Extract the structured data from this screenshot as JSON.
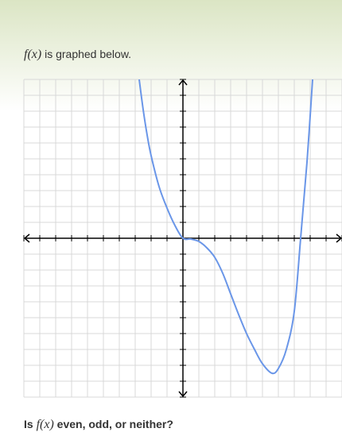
{
  "prompt": {
    "math": "f(x)",
    "text": " is graphed below."
  },
  "question": {
    "before": "Is ",
    "math": "f(x)",
    "after": " even, odd, or neither?"
  },
  "chart_data": {
    "type": "line",
    "xlim": [
      -10,
      10
    ],
    "ylim": [
      -10,
      10
    ],
    "xticks": [
      -10,
      -9,
      -8,
      -7,
      -6,
      -5,
      -4,
      -3,
      -2,
      -1,
      0,
      1,
      2,
      3,
      4,
      5,
      6,
      7,
      8,
      9,
      10
    ],
    "yticks": [
      -10,
      -9,
      -8,
      -7,
      -6,
      -5,
      -4,
      -3,
      -2,
      -1,
      0,
      1,
      2,
      3,
      4,
      5,
      6,
      7,
      8,
      9,
      10
    ],
    "grid": true,
    "x": [
      -2.75,
      -2.5,
      -2.25,
      -2,
      -1.5,
      -1,
      -0.5,
      0,
      0.5,
      1,
      1.5,
      2,
      2.5,
      3,
      3.5,
      4,
      4.5,
      5,
      5.6,
      6,
      6.5,
      7,
      7.4,
      7.8,
      8.15
    ],
    "series": [
      {
        "color": "#6a96e8",
        "values": [
          10,
          8.1,
          6.5,
          5.2,
          3.25,
          1.9,
          0.8,
          0,
          -0.05,
          -0.2,
          -0.6,
          -1.2,
          -2.2,
          -3.5,
          -4.8,
          -6,
          -7,
          -7.9,
          -8.5,
          -8.2,
          -7,
          -4.6,
          0,
          4.8,
          10
        ]
      }
    ]
  }
}
